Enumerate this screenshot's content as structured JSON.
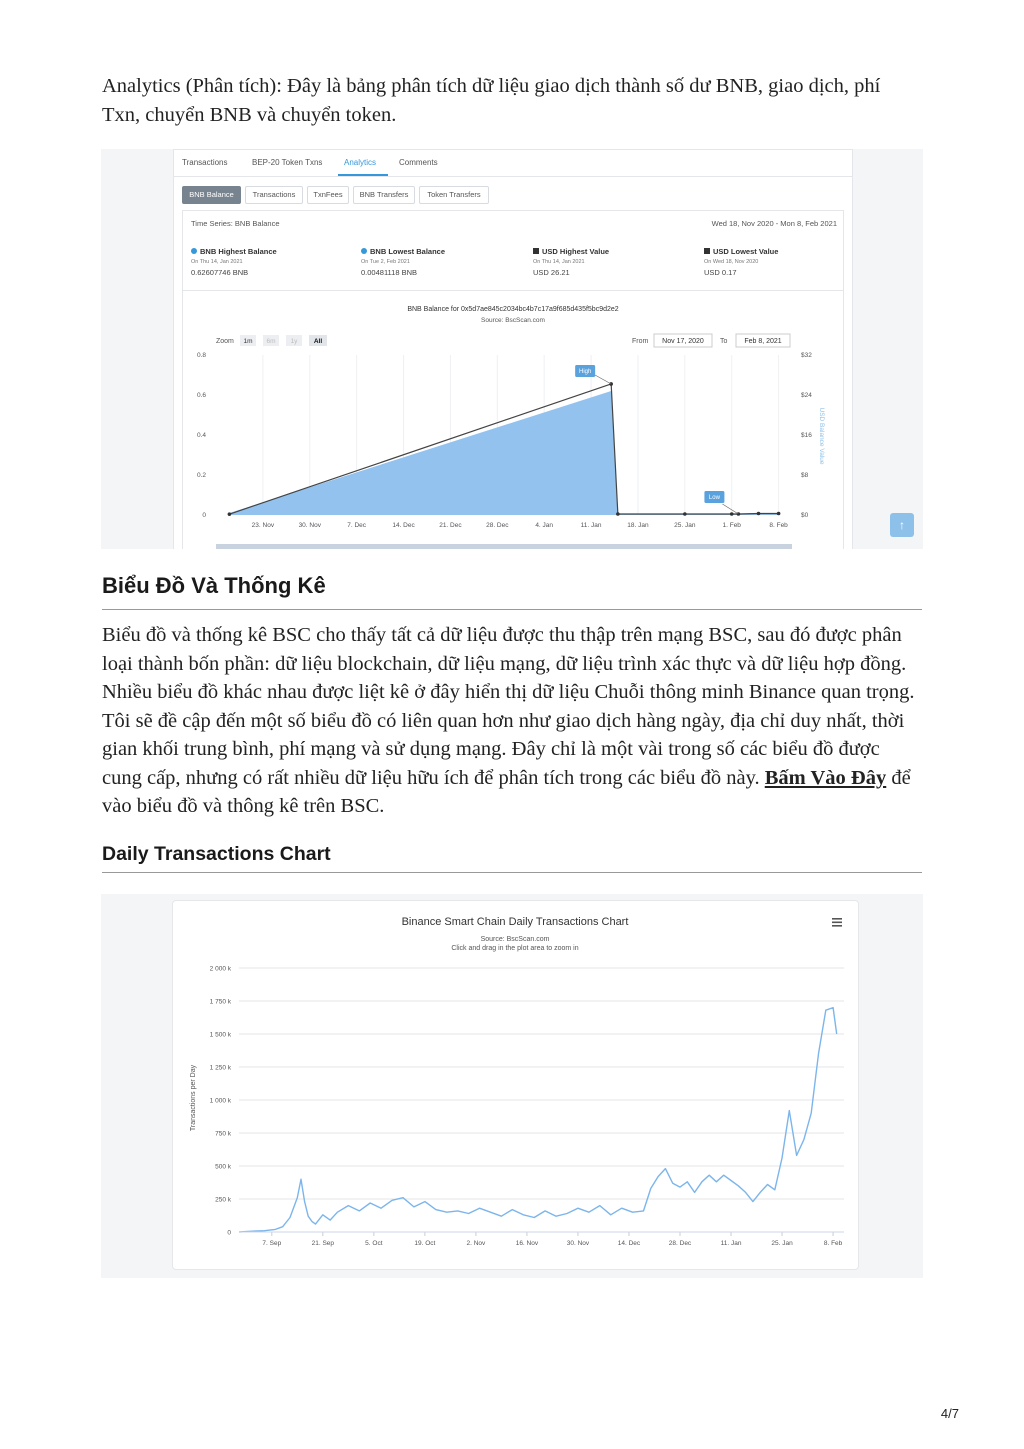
{
  "intro": {
    "label": "Analytics (Phân tích)",
    "text": ": Đây là bảng phân tích dữ liệu giao dịch thành số dư BNB, giao dịch, phí Txn, chuyển BNB và chuyển token."
  },
  "bscscan_analytics": {
    "tabs": [
      "Transactions",
      "BEP-20 Token Txns",
      "Analytics",
      "Comments"
    ],
    "active_tab": "Analytics",
    "subtabs": [
      "BNB Balance",
      "Transactions",
      "TxnFees",
      "BNB Transfers",
      "Token Transfers"
    ],
    "active_subtab": "BNB Balance",
    "time_series_label": "Time Series: BNB Balance",
    "date_range": "Wed 18, Nov 2020 - Mon 8, Feb 2021",
    "stats": [
      {
        "title": "BNB Highest Balance",
        "date": "On Thu 14, Jan 2021",
        "value": "0.62607746 BNB",
        "marker": "dot"
      },
      {
        "title": "BNB Lowest Balance",
        "date": "On Tue 2, Feb 2021",
        "value": "0.00481118 BNB",
        "marker": "dot"
      },
      {
        "title": "USD Highest Value",
        "date": "On Thu 14, Jan 2021",
        "value": "USD 26.21",
        "marker": "square"
      },
      {
        "title": "USD Lowest Value",
        "date": "On Wed 18, Nov 2020",
        "value": "USD 0.17",
        "marker": "square"
      }
    ],
    "chart_title": "BNB Balance for 0x5d7ae845c2034bc4b7c17a9f685d435f5bc9d2e2",
    "chart_source": "Source: BscScan.com",
    "zoom_label": "Zoom",
    "zoom_options": [
      "1m",
      "6m",
      "1y",
      "All"
    ],
    "zoom_selected": "All",
    "from_label": "From",
    "from_value": "Nov 17, 2020",
    "to_label": "To",
    "to_value": "Feb 8, 2021",
    "high_flag": "High",
    "low_flag": "Low",
    "y2_label": "USD Balance Value",
    "scroll_top_icon": "arrow-up-icon"
  },
  "section_charts": {
    "heading": "Biểu Đồ Và Thống Kê",
    "para_before_link": "Biểu đồ và thống kê BSC cho thấy tất cả dữ liệu được thu thập trên mạng BSC, sau đó được phân loại thành bốn phần: dữ liệu blockchain, dữ liệu mạng, dữ liệu trình xác thực và dữ liệu hợp đồng. Nhiều biểu đồ khác nhau được liệt kê ở đây hiển thị dữ liệu Chuỗi thông minh Binance quan trọng. Tôi sẽ đề cập đến một số biểu đồ có liên quan hơn như giao dịch hàng ngày, địa chỉ duy nhất, thời gian khối trung bình, phí mạng và sử dụng mạng. Đây chỉ là một vài trong số các biểu đồ được cung cấp, nhưng có rất nhiều dữ liệu hữu ích để phân tích trong các biểu đồ này.",
    "link_text": "Bấm Vào Đây",
    "para_after_link": " để vào biểu đồ và thông kê trên BSC."
  },
  "section_daily": {
    "heading": "Daily Transactions Chart",
    "chart_subtitle": "Source: BscScan.com",
    "chart_hint": "Click and drag in the plot area to zoom in",
    "menu_icon": "hamburger-menu-icon"
  },
  "page_number": "4/7",
  "chart_data": [
    {
      "type": "area",
      "title": "",
      "x_ticks": [
        "23. Nov",
        "30. Nov",
        "7. Dec",
        "14. Dec",
        "21. Dec",
        "28. Dec",
        "4. Jan",
        "11. Jan",
        "18. Jan",
        "25. Jan",
        "1. Feb",
        "8. Feb"
      ],
      "y_ticks": [
        "0",
        "0.2",
        "0.4",
        "0.6",
        "0.8"
      ],
      "y2_ticks": [
        "$0",
        "$8",
        "$16",
        "$24",
        "$32"
      ],
      "ylim": [
        0,
        0.8
      ],
      "y2lim": [
        0,
        32
      ],
      "ylabel": "",
      "y2label": "USD Balance Value",
      "series": [
        {
          "name": "",
          "x": [
            "2020-11-18",
            "2021-01-14",
            "2021-01-15",
            "2021-01-25",
            "2021-02-01",
            "2021-02-02",
            "2021-02-05",
            "2021-02-08"
          ],
          "values": [
            0.01,
            0.62,
            0.005,
            0.005,
            0.005,
            0.005,
            0.006,
            0.006
          ]
        },
        {
          "name": "",
          "axis": "y2",
          "x": [
            "2020-11-18",
            "2021-01-14",
            "2021-01-15",
            "2021-01-25",
            "2021-02-01",
            "2021-02-02",
            "2021-02-05",
            "2021-02-08"
          ],
          "values": [
            0.17,
            26.21,
            0.2,
            0.2,
            0.2,
            0.2,
            0.3,
            0.3
          ]
        }
      ],
      "colors": {
        "area": "#93c2ee",
        "line": "#444444",
        "flag": "#5aa2dd"
      }
    },
    {
      "type": "line",
      "title": "Binance Smart Chain Daily Transactions Chart",
      "ylabel": "Transactions per Day",
      "xlabel": "",
      "x_ticks": [
        "7. Sep",
        "21. Sep",
        "5. Oct",
        "19. Oct",
        "2. Nov",
        "16. Nov",
        "30. Nov",
        "14. Dec",
        "28. Dec",
        "11. Jan",
        "25. Jan",
        "8. Feb"
      ],
      "y_ticks": [
        "0",
        "250 k",
        "500 k",
        "750 k",
        "1 000 k",
        "1 250 k",
        "1 500 k",
        "1 750 k",
        "2 000 k"
      ],
      "ylim": [
        0,
        2000000
      ],
      "x": [
        "2020-08-29",
        "2020-09-01",
        "2020-09-05",
        "2020-09-08",
        "2020-09-10",
        "2020-09-12",
        "2020-09-14",
        "2020-09-15",
        "2020-09-16",
        "2020-09-17",
        "2020-09-18",
        "2020-09-19",
        "2020-09-21",
        "2020-09-23",
        "2020-09-25",
        "2020-09-28",
        "2020-10-01",
        "2020-10-04",
        "2020-10-07",
        "2020-10-10",
        "2020-10-13",
        "2020-10-16",
        "2020-10-19",
        "2020-10-22",
        "2020-10-25",
        "2020-10-28",
        "2020-10-31",
        "2020-11-03",
        "2020-11-06",
        "2020-11-09",
        "2020-11-12",
        "2020-11-15",
        "2020-11-18",
        "2020-11-21",
        "2020-11-24",
        "2020-11-27",
        "2020-11-30",
        "2020-12-03",
        "2020-12-06",
        "2020-12-09",
        "2020-12-12",
        "2020-12-15",
        "2020-12-18",
        "2020-12-20",
        "2020-12-22",
        "2020-12-24",
        "2020-12-26",
        "2020-12-28",
        "2020-12-30",
        "2021-01-01",
        "2021-01-03",
        "2021-01-05",
        "2021-01-07",
        "2021-01-09",
        "2021-01-11",
        "2021-01-13",
        "2021-01-15",
        "2021-01-17",
        "2021-01-19",
        "2021-01-21",
        "2021-01-23",
        "2021-01-25",
        "2021-01-27",
        "2021-01-29",
        "2021-01-31",
        "2021-02-02",
        "2021-02-04",
        "2021-02-06",
        "2021-02-08",
        "2021-02-09"
      ],
      "values": [
        0,
        5000,
        10000,
        20000,
        40000,
        110000,
        260000,
        400000,
        230000,
        120000,
        80000,
        60000,
        130000,
        90000,
        150000,
        200000,
        160000,
        220000,
        180000,
        240000,
        260000,
        190000,
        230000,
        170000,
        150000,
        160000,
        140000,
        180000,
        150000,
        120000,
        170000,
        130000,
        110000,
        160000,
        120000,
        140000,
        180000,
        150000,
        200000,
        130000,
        180000,
        150000,
        160000,
        330000,
        420000,
        480000,
        370000,
        340000,
        380000,
        300000,
        380000,
        430000,
        380000,
        430000,
        390000,
        350000,
        300000,
        230000,
        300000,
        360000,
        320000,
        560000,
        920000,
        580000,
        700000,
        900000,
        1350000,
        1680000,
        1700000,
        1500000
      ]
    }
  ]
}
